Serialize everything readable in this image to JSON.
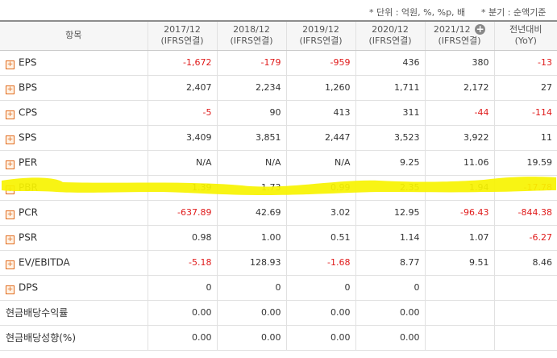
{
  "notes": {
    "unit": "* 단위 : 억원, %, %p, 배",
    "period": "* 분기 : 순액기준"
  },
  "header": {
    "item": "항목",
    "cols": [
      {
        "year": "2017/12",
        "sub": "(IFRS연결)"
      },
      {
        "year": "2018/12",
        "sub": "(IFRS연결)"
      },
      {
        "year": "2019/12",
        "sub": "(IFRS연결)"
      },
      {
        "year": "2020/12",
        "sub": "(IFRS연결)"
      },
      {
        "year": "2021/12",
        "sub": "(IFRS연결)"
      }
    ],
    "yoy": {
      "line1": "전년대비",
      "line2": "(YoY)"
    },
    "expand_icon": "plus-circle-icon"
  },
  "rows": [
    {
      "label": "EPS",
      "expand": true,
      "values": [
        "-1,672",
        "-179",
        "-959",
        "436",
        "380",
        "-13"
      ]
    },
    {
      "label": "BPS",
      "expand": true,
      "values": [
        "2,407",
        "2,234",
        "1,260",
        "1,711",
        "2,172",
        "27"
      ]
    },
    {
      "label": "CPS",
      "expand": true,
      "values": [
        "-5",
        "90",
        "413",
        "311",
        "-44",
        "-114"
      ]
    },
    {
      "label": "SPS",
      "expand": true,
      "values": [
        "3,409",
        "3,851",
        "2,447",
        "3,523",
        "3,922",
        "11"
      ]
    },
    {
      "label": "PER",
      "expand": true,
      "values": [
        "N/A",
        "N/A",
        "N/A",
        "9.25",
        "11.06",
        "19.59"
      ]
    },
    {
      "label": "PBR",
      "expand": true,
      "highlight": true,
      "values": [
        "1.39",
        "1.73",
        "0.99",
        "2.35",
        "1.94",
        "-17.78"
      ]
    },
    {
      "label": "PCR",
      "expand": true,
      "values": [
        "-637.89",
        "42.69",
        "3.02",
        "12.95",
        "-96.43",
        "-844.38"
      ]
    },
    {
      "label": "PSR",
      "expand": true,
      "values": [
        "0.98",
        "1.00",
        "0.51",
        "1.14",
        "1.07",
        "-6.27"
      ]
    },
    {
      "label": "EV/EBITDA",
      "expand": true,
      "values": [
        "-5.18",
        "128.93",
        "-1.68",
        "8.77",
        "9.51",
        "8.46"
      ]
    },
    {
      "label": "DPS",
      "expand": true,
      "values": [
        "0",
        "0",
        "0",
        "0",
        "",
        ""
      ]
    },
    {
      "label": "현금배당수익률",
      "expand": false,
      "values": [
        "0.00",
        "0.00",
        "0.00",
        "0.00",
        "",
        ""
      ]
    },
    {
      "label": "현금배당성향(%)",
      "expand": false,
      "values": [
        "0.00",
        "0.00",
        "0.00",
        "0.00",
        "",
        ""
      ]
    }
  ],
  "colors": {
    "negative": "#e01b1b",
    "highlight": "#f7f300",
    "expand_icon": "#e26b1c"
  }
}
